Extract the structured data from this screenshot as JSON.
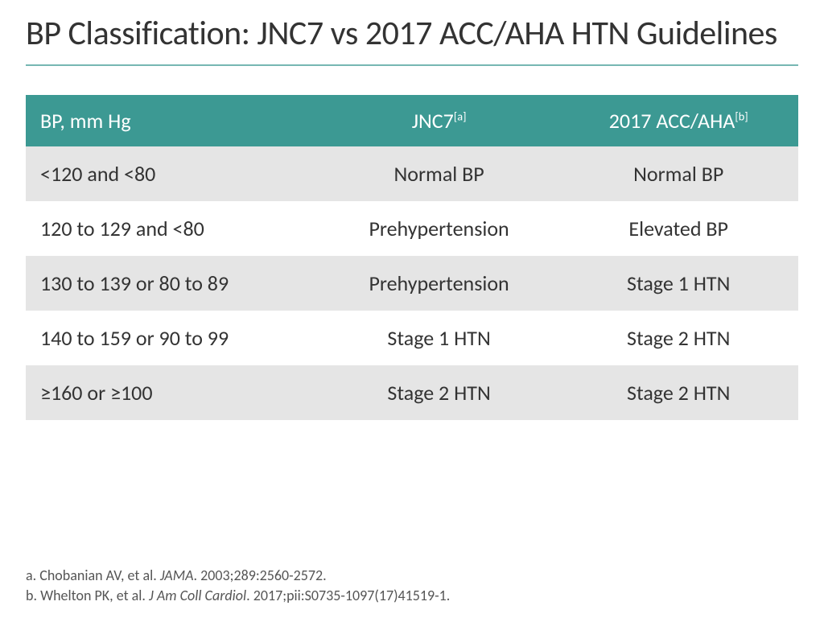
{
  "title": "BP Classification: JNC7 vs 2017 ACC/AHA HTN Guidelines",
  "colors": {
    "header_bg": "#3c9993",
    "row_odd_bg": "#e5e5e5",
    "row_even_bg": "#ffffff",
    "rule": "#3c9993",
    "header_text": "#ffffff",
    "body_text": "#333333"
  },
  "table": {
    "columns": [
      {
        "label": "BP, mm Hg",
        "sup": "",
        "align": "left"
      },
      {
        "label": "JNC7",
        "sup": "[a]",
        "align": "center"
      },
      {
        "label": "2017 ACC/AHA",
        "sup": "[b]",
        "align": "center"
      }
    ],
    "rows": [
      {
        "bp": "<120 and <80",
        "jnc7": "Normal BP",
        "acc": "Normal BP"
      },
      {
        "bp": "120 to 129 and <80",
        "jnc7": "Prehypertension",
        "acc": "Elevated BP"
      },
      {
        "bp": "130 to 139 or 80 to 89",
        "jnc7": "Prehypertension",
        "acc": "Stage 1 HTN"
      },
      {
        "bp": "140 to 159 or 90 to 99",
        "jnc7": "Stage 1 HTN",
        "acc": "Stage 2 HTN"
      },
      {
        "bp": "≥160 or ≥100",
        "jnc7": "Stage 2 HTN",
        "acc": "Stage 2 HTN"
      }
    ]
  },
  "footnotes": {
    "a_prefix": "a. Chobanian AV, et al. ",
    "a_ital": "JAMA",
    "a_suffix": ". 2003;289:2560-2572.",
    "b_prefix": "b. Whelton PK, et al. ",
    "b_ital": "J Am Coll Cardiol",
    "b_suffix": ". 2017;pii:S0735-1097(17)41519-1."
  }
}
